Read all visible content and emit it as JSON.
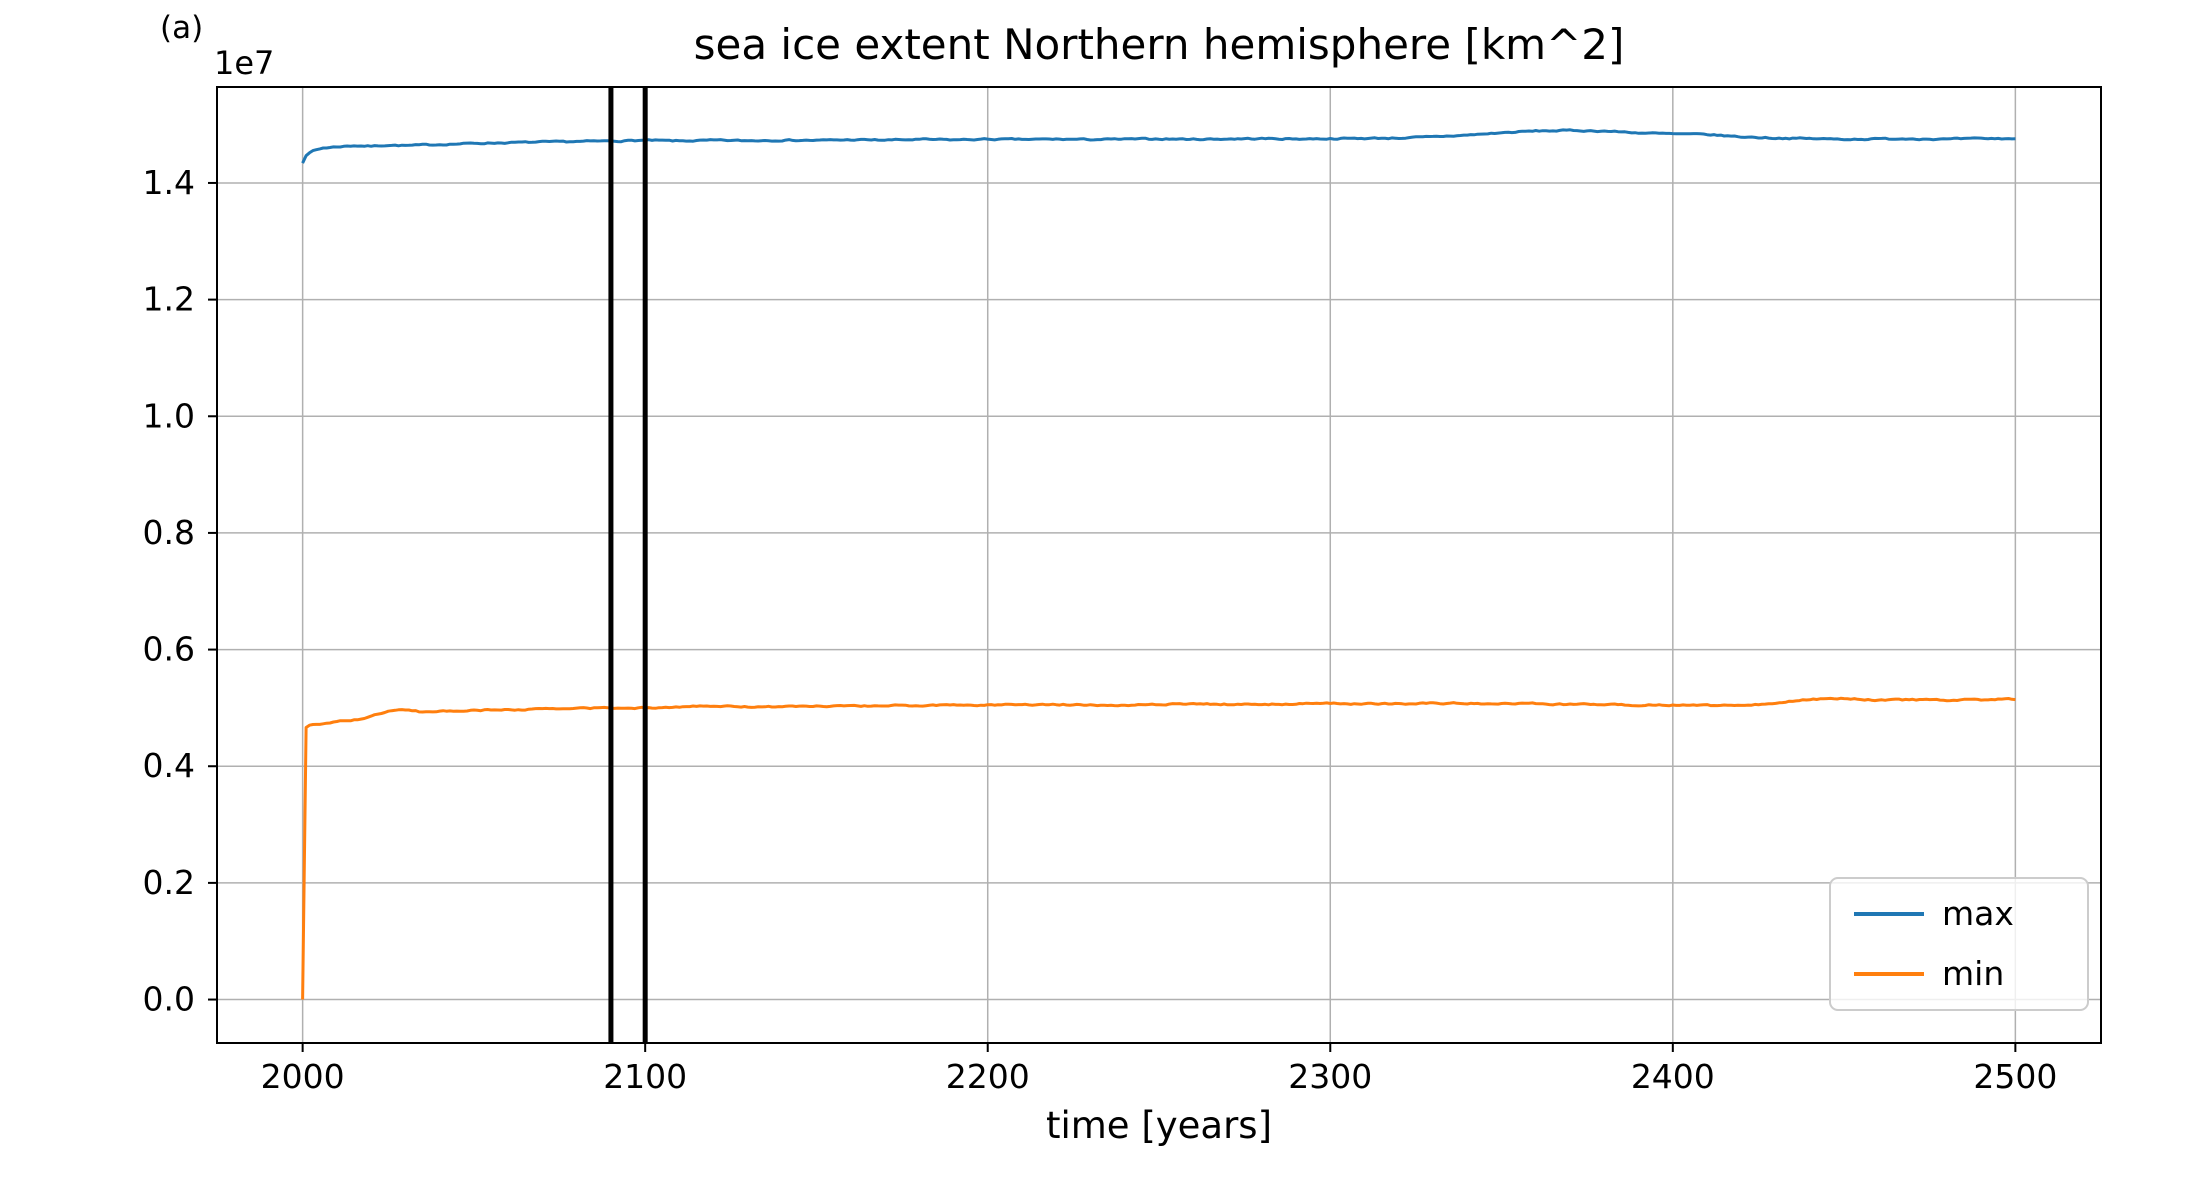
{
  "figure": {
    "panel_label": "(a)"
  },
  "chart_data": {
    "type": "line",
    "title": "sea ice extent Northern hemisphere [km^2]",
    "xlabel": "time [years]",
    "ylabel": "",
    "y_offset_label": "1e7",
    "xlim": [
      1975,
      2525
    ],
    "ylim": [
      -745000,
      15645000
    ],
    "xticks": [
      2000,
      2100,
      2200,
      2300,
      2400,
      2500
    ],
    "yticks": [
      0.0,
      0.2,
      0.4,
      0.6,
      0.8,
      1.0,
      1.2,
      1.4
    ],
    "ytick_scale": 10000000,
    "grid": true,
    "grid_color": "#b0b0b0",
    "legend": {
      "position": "lower right",
      "entries": [
        {
          "label": "max",
          "color": "#1f77b4"
        },
        {
          "label": "min",
          "color": "#ff7f0e"
        }
      ]
    },
    "vlines": {
      "x": [
        2090,
        2100
      ],
      "color": "#000000"
    },
    "series": [
      {
        "name": "max",
        "color": "#1f77b4",
        "points": [
          [
            2000,
            14350000
          ],
          [
            2001,
            14480000
          ],
          [
            2003,
            14550000
          ],
          [
            2006,
            14600000
          ],
          [
            2010,
            14620000
          ],
          [
            2015,
            14640000
          ],
          [
            2020,
            14630000
          ],
          [
            2025,
            14650000
          ],
          [
            2030,
            14640000
          ],
          [
            2040,
            14660000
          ],
          [
            2050,
            14680000
          ],
          [
            2060,
            14690000
          ],
          [
            2070,
            14700000
          ],
          [
            2080,
            14710000
          ],
          [
            2090,
            14720000
          ],
          [
            2100,
            14730000
          ],
          [
            2110,
            14720000
          ],
          [
            2120,
            14730000
          ],
          [
            2130,
            14725000
          ],
          [
            2140,
            14735000
          ],
          [
            2150,
            14730000
          ],
          [
            2160,
            14740000
          ],
          [
            2170,
            14735000
          ],
          [
            2180,
            14745000
          ],
          [
            2190,
            14740000
          ],
          [
            2200,
            14750000
          ],
          [
            2210,
            14745000
          ],
          [
            2220,
            14750000
          ],
          [
            2230,
            14745000
          ],
          [
            2240,
            14750000
          ],
          [
            2250,
            14755000
          ],
          [
            2260,
            14750000
          ],
          [
            2270,
            14755000
          ],
          [
            2280,
            14760000
          ],
          [
            2290,
            14755000
          ],
          [
            2300,
            14760000
          ],
          [
            2310,
            14765000
          ],
          [
            2320,
            14770000
          ],
          [
            2330,
            14790000
          ],
          [
            2340,
            14820000
          ],
          [
            2350,
            14860000
          ],
          [
            2360,
            14890000
          ],
          [
            2370,
            14900000
          ],
          [
            2380,
            14890000
          ],
          [
            2390,
            14860000
          ],
          [
            2400,
            14840000
          ],
          [
            2410,
            14830000
          ],
          [
            2420,
            14790000
          ],
          [
            2430,
            14770000
          ],
          [
            2440,
            14760000
          ],
          [
            2450,
            14750000
          ],
          [
            2460,
            14755000
          ],
          [
            2470,
            14760000
          ],
          [
            2480,
            14750000
          ],
          [
            2490,
            14760000
          ],
          [
            2500,
            14760000
          ]
        ]
      },
      {
        "name": "min",
        "color": "#ff7f0e",
        "points": [
          [
            2000,
            0
          ],
          [
            2000.5,
            4650000
          ],
          [
            2002,
            4700000
          ],
          [
            2005,
            4720000
          ],
          [
            2008,
            4750000
          ],
          [
            2012,
            4780000
          ],
          [
            2016,
            4800000
          ],
          [
            2020,
            4850000
          ],
          [
            2025,
            4950000
          ],
          [
            2030,
            4970000
          ],
          [
            2035,
            4930000
          ],
          [
            2040,
            4940000
          ],
          [
            2050,
            4960000
          ],
          [
            2060,
            4970000
          ],
          [
            2070,
            4980000
          ],
          [
            2080,
            4990000
          ],
          [
            2090,
            5000000
          ],
          [
            2100,
            5000000
          ],
          [
            2110,
            5020000
          ],
          [
            2120,
            5030000
          ],
          [
            2130,
            5020000
          ],
          [
            2140,
            5020000
          ],
          [
            2150,
            5030000
          ],
          [
            2160,
            5030000
          ],
          [
            2170,
            5040000
          ],
          [
            2180,
            5040000
          ],
          [
            2190,
            5050000
          ],
          [
            2200,
            5050000
          ],
          [
            2210,
            5060000
          ],
          [
            2220,
            5060000
          ],
          [
            2230,
            5050000
          ],
          [
            2240,
            5050000
          ],
          [
            2250,
            5060000
          ],
          [
            2260,
            5070000
          ],
          [
            2270,
            5060000
          ],
          [
            2280,
            5060000
          ],
          [
            2290,
            5070000
          ],
          [
            2300,
            5080000
          ],
          [
            2310,
            5070000
          ],
          [
            2320,
            5070000
          ],
          [
            2330,
            5080000
          ],
          [
            2340,
            5080000
          ],
          [
            2350,
            5070000
          ],
          [
            2360,
            5070000
          ],
          [
            2370,
            5060000
          ],
          [
            2380,
            5060000
          ],
          [
            2390,
            5050000
          ],
          [
            2400,
            5050000
          ],
          [
            2410,
            5040000
          ],
          [
            2420,
            5050000
          ],
          [
            2430,
            5080000
          ],
          [
            2440,
            5150000
          ],
          [
            2450,
            5170000
          ],
          [
            2460,
            5130000
          ],
          [
            2470,
            5140000
          ],
          [
            2480,
            5130000
          ],
          [
            2490,
            5140000
          ],
          [
            2500,
            5150000
          ]
        ]
      }
    ]
  }
}
